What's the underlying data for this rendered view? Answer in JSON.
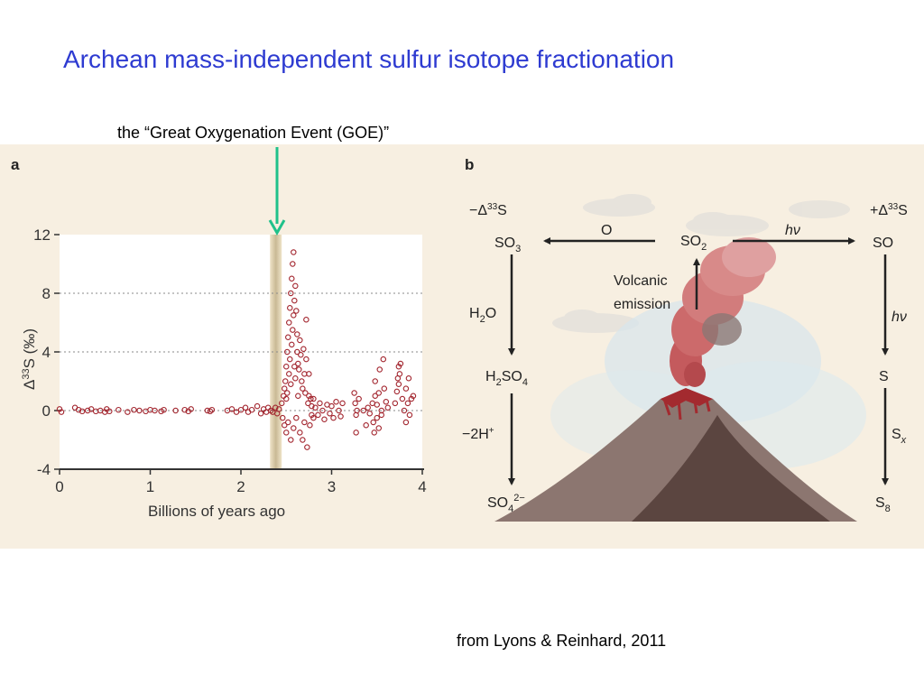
{
  "slide": {
    "title": "Archean mass-independent sulfur isotope fractionation",
    "goe_caption": "the “Great Oxygenation Event (GOE)”",
    "credit": "from Lyons & Reinhard, 2011"
  },
  "panel_a": {
    "label": "a",
    "ylabel_prefix": "Δ",
    "ylabel_sup": "33",
    "ylabel_suffix": "S (‰)"
  },
  "panel_b": {
    "label": "b",
    "neg_label_prefix": "−Δ",
    "neg_label_sup": "33",
    "neg_label_suffix": "S",
    "pos_label_prefix": "+Δ",
    "pos_label_sup": "33",
    "pos_label_suffix": "S",
    "so3": "SO",
    "so3_sub": "3",
    "so2": "SO",
    "so2_sub": "2",
    "so": "SO",
    "o_label": "O",
    "hv_label": "hν",
    "hv_label_2": "hν",
    "volcanic_line1": "Volcanic",
    "volcanic_line2": "emission",
    "h2o_a": "H",
    "h2o_sub": "2",
    "h2o_b": "O",
    "h2so4_a": "H",
    "h2so4_sub1": "2",
    "h2so4_b": "SO",
    "h2so4_sub2": "4",
    "minus2h": "−2H",
    "minus2h_sup": "+",
    "so4_a": "SO",
    "so4_sub": "4",
    "so4_sup": "2−",
    "s_label": "S",
    "sx_a": "S",
    "sx_sub": "x",
    "s8_a": "S",
    "s8_sub": "8"
  },
  "colors": {
    "title": "#2e3bd1",
    "figure_bg": "#f7efe1",
    "goe_arrow": "#20c18a",
    "marker": "#a3262f",
    "goe_band": "#cbbd9a"
  },
  "chart_data": {
    "type": "scatter",
    "title": "",
    "xlabel": "Billions of years ago",
    "ylabel": "Δ33S (‰)",
    "xlim": [
      0,
      4
    ],
    "ylim": [
      -4,
      12
    ],
    "x_ticks": [
      "0",
      "1",
      "2",
      "3",
      "4"
    ],
    "y_ticks": [
      "-4",
      "0",
      "4",
      "8",
      "12"
    ],
    "gridlines_y": [
      0,
      4,
      8
    ],
    "goe_band_x": [
      2.32,
      2.45
    ],
    "series": [
      {
        "values": [
          [
            0.0,
            0.1
          ],
          [
            0.02,
            -0.1
          ],
          [
            0.17,
            0.2
          ],
          [
            0.21,
            0.05
          ],
          [
            0.25,
            -0.05
          ],
          [
            0.31,
            0.0
          ],
          [
            0.35,
            0.1
          ],
          [
            0.4,
            -0.05
          ],
          [
            0.45,
            0.0
          ],
          [
            0.5,
            -0.1
          ],
          [
            0.52,
            0.1
          ],
          [
            0.55,
            -0.05
          ],
          [
            0.65,
            0.05
          ],
          [
            0.75,
            -0.1
          ],
          [
            0.82,
            0.05
          ],
          [
            0.88,
            0.0
          ],
          [
            0.95,
            -0.05
          ],
          [
            1.0,
            0.05
          ],
          [
            1.05,
            0.0
          ],
          [
            1.12,
            -0.05
          ],
          [
            1.15,
            0.05
          ],
          [
            1.28,
            0.0
          ],
          [
            1.38,
            0.05
          ],
          [
            1.42,
            -0.05
          ],
          [
            1.45,
            0.1
          ],
          [
            1.63,
            0.0
          ],
          [
            1.66,
            -0.05
          ],
          [
            1.68,
            0.05
          ],
          [
            1.85,
            0.0
          ],
          [
            1.9,
            0.1
          ],
          [
            1.95,
            -0.1
          ],
          [
            2.0,
            0.05
          ],
          [
            2.05,
            0.2
          ],
          [
            2.08,
            -0.1
          ],
          [
            2.12,
            0.05
          ],
          [
            2.18,
            0.3
          ],
          [
            2.22,
            -0.2
          ],
          [
            2.25,
            0.1
          ],
          [
            2.28,
            -0.1
          ],
          [
            2.3,
            0.2
          ],
          [
            2.33,
            0.0
          ],
          [
            2.35,
            -0.1
          ],
          [
            2.38,
            0.2
          ],
          [
            2.4,
            -0.2
          ],
          [
            2.42,
            0.1
          ],
          [
            2.45,
            0.5
          ],
          [
            2.46,
            -0.5
          ],
          [
            2.47,
            1.0
          ],
          [
            2.48,
            1.5
          ],
          [
            2.48,
            -1.0
          ],
          [
            2.49,
            2.0
          ],
          [
            2.5,
            3.0
          ],
          [
            2.5,
            -1.5
          ],
          [
            2.5,
            0.8
          ],
          [
            2.51,
            4.0
          ],
          [
            2.51,
            1.2
          ],
          [
            2.52,
            5.0
          ],
          [
            2.52,
            -0.8
          ],
          [
            2.53,
            6.0
          ],
          [
            2.53,
            2.5
          ],
          [
            2.54,
            7.0
          ],
          [
            2.54,
            3.5
          ],
          [
            2.55,
            8.0
          ],
          [
            2.55,
            1.8
          ],
          [
            2.55,
            -2.0
          ],
          [
            2.56,
            9.0
          ],
          [
            2.56,
            4.5
          ],
          [
            2.57,
            10.0
          ],
          [
            2.57,
            5.5
          ],
          [
            2.58,
            10.8
          ],
          [
            2.58,
            6.5
          ],
          [
            2.58,
            -1.2
          ],
          [
            2.59,
            7.5
          ],
          [
            2.59,
            3.0
          ],
          [
            2.6,
            8.5
          ],
          [
            2.6,
            2.2
          ],
          [
            2.61,
            6.8
          ],
          [
            2.61,
            -0.5
          ],
          [
            2.62,
            5.2
          ],
          [
            2.62,
            4.0
          ],
          [
            2.63,
            3.2
          ],
          [
            2.63,
            1.0
          ],
          [
            2.64,
            2.8
          ],
          [
            2.65,
            4.8
          ],
          [
            2.65,
            -1.5
          ],
          [
            2.66,
            3.8
          ],
          [
            2.67,
            2.0
          ],
          [
            2.68,
            1.5
          ],
          [
            2.68,
            -2.0
          ],
          [
            2.69,
            4.2
          ],
          [
            2.7,
            2.5
          ],
          [
            2.7,
            -0.8
          ],
          [
            2.71,
            1.2
          ],
          [
            2.72,
            6.2
          ],
          [
            2.72,
            3.5
          ],
          [
            2.73,
            -2.5
          ],
          [
            2.74,
            0.5
          ],
          [
            2.75,
            2.5
          ],
          [
            2.75,
            1.0
          ],
          [
            2.76,
            -1.0
          ],
          [
            2.77,
            0.8
          ],
          [
            2.78,
            0.3
          ],
          [
            2.78,
            -0.3
          ],
          [
            2.8,
            0.8
          ],
          [
            2.8,
            -0.5
          ],
          [
            2.82,
            0.2
          ],
          [
            2.85,
            -0.3
          ],
          [
            2.87,
            0.5
          ],
          [
            2.9,
            0.0
          ],
          [
            2.92,
            -0.6
          ],
          [
            2.95,
            0.4
          ],
          [
            2.98,
            -0.2
          ],
          [
            3.0,
            0.3
          ],
          [
            3.02,
            -0.5
          ],
          [
            3.05,
            0.6
          ],
          [
            3.08,
            0.0
          ],
          [
            3.1,
            -0.4
          ],
          [
            3.12,
            0.5
          ],
          [
            3.25,
            1.2
          ],
          [
            3.26,
            0.5
          ],
          [
            3.27,
            -0.3
          ],
          [
            3.27,
            -1.5
          ],
          [
            3.28,
            0.0
          ],
          [
            3.3,
            0.8
          ],
          [
            3.35,
            0.0
          ],
          [
            3.38,
            -1.0
          ],
          [
            3.4,
            0.2
          ],
          [
            3.42,
            -0.2
          ],
          [
            3.45,
            0.5
          ],
          [
            3.46,
            -0.8
          ],
          [
            3.47,
            -1.5
          ],
          [
            3.48,
            1.0
          ],
          [
            3.48,
            2.0
          ],
          [
            3.5,
            -0.5
          ],
          [
            3.5,
            0.4
          ],
          [
            3.52,
            -1.2
          ],
          [
            3.52,
            1.2
          ],
          [
            3.53,
            2.8
          ],
          [
            3.55,
            0.0
          ],
          [
            3.55,
            -0.3
          ],
          [
            3.57,
            3.5
          ],
          [
            3.58,
            1.5
          ],
          [
            3.6,
            0.6
          ],
          [
            3.62,
            0.2
          ],
          [
            3.7,
            0.5
          ],
          [
            3.72,
            1.3
          ],
          [
            3.73,
            2.2
          ],
          [
            3.74,
            3.0
          ],
          [
            3.74,
            1.8
          ],
          [
            3.75,
            2.5
          ],
          [
            3.76,
            3.2
          ],
          [
            3.78,
            0.8
          ],
          [
            3.8,
            0.0
          ],
          [
            3.82,
            1.5
          ],
          [
            3.82,
            -0.8
          ],
          [
            3.84,
            0.5
          ],
          [
            3.85,
            2.2
          ],
          [
            3.86,
            -0.3
          ],
          [
            3.88,
            0.8
          ],
          [
            3.9,
            1.0
          ]
        ]
      }
    ]
  }
}
